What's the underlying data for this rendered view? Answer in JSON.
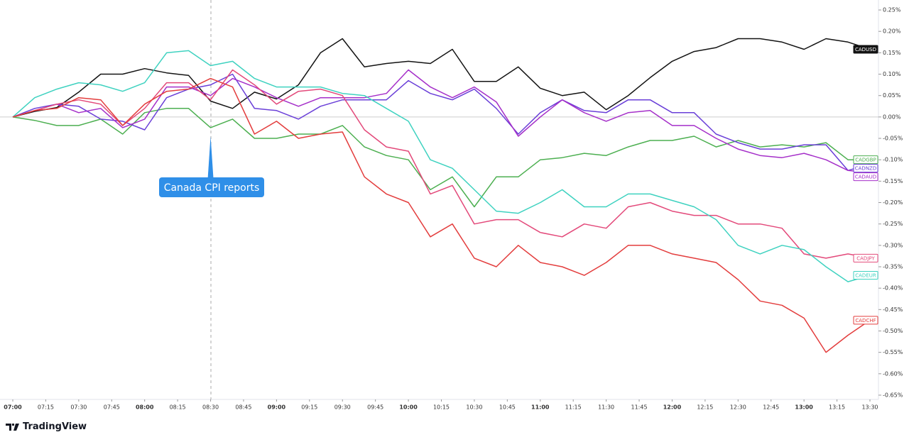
{
  "chart_data": {
    "type": "line",
    "x": [
      "07:00",
      "07:10",
      "07:20",
      "07:30",
      "07:40",
      "07:50",
      "08:00",
      "08:10",
      "08:20",
      "08:30",
      "08:40",
      "08:50",
      "09:00",
      "09:10",
      "09:20",
      "09:30",
      "09:40",
      "09:50",
      "10:00",
      "10:10",
      "10:20",
      "10:30",
      "10:40",
      "10:50",
      "11:00",
      "11:10",
      "11:20",
      "11:30",
      "11:40",
      "11:50",
      "12:00",
      "12:10",
      "12:20",
      "12:30",
      "12:40",
      "12:50",
      "13:00",
      "13:10",
      "13:20",
      "13:30"
    ],
    "series": [
      {
        "name": "CADUSD",
        "color": "#131313",
        "values": [
          0,
          0.013,
          0.022,
          0.058,
          0.1,
          0.1,
          0.113,
          0.103,
          0.097,
          0.037,
          0.02,
          0.058,
          0.042,
          0.075,
          0.15,
          0.183,
          0.117,
          0.125,
          0.13,
          0.125,
          0.158,
          0.083,
          0.083,
          0.117,
          0.067,
          0.05,
          0.058,
          0.017,
          0.05,
          0.092,
          0.13,
          0.153,
          0.162,
          0.183,
          0.183,
          0.175,
          0.158,
          0.183,
          0.175,
          0.158
        ]
      },
      {
        "name": "CADGBP",
        "color": "#4caf50",
        "values": [
          0,
          -0.008,
          -0.02,
          -0.02,
          -0.005,
          -0.04,
          0.01,
          0.02,
          0.02,
          -0.025,
          -0.005,
          -0.05,
          -0.05,
          -0.04,
          -0.04,
          -0.02,
          -0.07,
          -0.09,
          -0.1,
          -0.17,
          -0.14,
          -0.21,
          -0.14,
          -0.14,
          -0.1,
          -0.095,
          -0.085,
          -0.09,
          -0.07,
          -0.055,
          -0.055,
          -0.045,
          -0.07,
          -0.055,
          -0.07,
          -0.065,
          -0.07,
          -0.06,
          -0.1,
          -0.1
        ]
      },
      {
        "name": "CADNZD",
        "color": "#6a3fd8",
        "values": [
          0,
          0.02,
          0.03,
          0.025,
          -0.005,
          -0.01,
          -0.03,
          0.045,
          0.065,
          0.075,
          0.1,
          0.02,
          0.015,
          -0.005,
          0.025,
          0.04,
          0.04,
          0.04,
          0.085,
          0.055,
          0.04,
          0.065,
          0.02,
          -0.04,
          0.01,
          0.04,
          0.015,
          0.01,
          0.04,
          0.04,
          0.01,
          0.01,
          -0.04,
          -0.06,
          -0.075,
          -0.075,
          -0.065,
          -0.065,
          -0.125,
          -0.11
        ]
      },
      {
        "name": "CADAUD",
        "color": "#a52fc9",
        "values": [
          0,
          0.015,
          0.03,
          0.01,
          0.02,
          -0.025,
          -0.005,
          0.07,
          0.07,
          0.05,
          0.09,
          0.07,
          0.045,
          0.025,
          0.045,
          0.045,
          0.045,
          0.055,
          0.11,
          0.07,
          0.045,
          0.07,
          0.035,
          -0.045,
          0,
          0.04,
          0.01,
          -0.01,
          0.01,
          0.015,
          -0.02,
          -0.02,
          -0.05,
          -0.075,
          -0.09,
          -0.095,
          -0.085,
          -0.1,
          -0.125,
          -0.13
        ]
      },
      {
        "name": "CADJPY",
        "color": "#e3497a",
        "values": [
          0,
          0.015,
          0.03,
          0.04,
          0.03,
          -0.02,
          0.02,
          0.08,
          0.08,
          0.04,
          0.11,
          0.075,
          0.03,
          0.06,
          0.065,
          0.05,
          -0.03,
          -0.07,
          -0.08,
          -0.18,
          -0.16,
          -0.25,
          -0.24,
          -0.24,
          -0.27,
          -0.28,
          -0.25,
          -0.26,
          -0.21,
          -0.2,
          -0.22,
          -0.23,
          -0.23,
          -0.25,
          -0.25,
          -0.26,
          -0.32,
          -0.33,
          -0.32,
          -0.33
        ]
      },
      {
        "name": "CADEUR",
        "color": "#3fd2c0",
        "values": [
          0,
          0.045,
          0.065,
          0.08,
          0.075,
          0.06,
          0.08,
          0.15,
          0.155,
          0.12,
          0.13,
          0.09,
          0.07,
          0.07,
          0.07,
          0.055,
          0.05,
          0.02,
          -0.01,
          -0.1,
          -0.12,
          -0.17,
          -0.22,
          -0.225,
          -0.2,
          -0.17,
          -0.21,
          -0.21,
          -0.18,
          -0.18,
          -0.195,
          -0.21,
          -0.24,
          -0.3,
          -0.32,
          -0.3,
          -0.31,
          -0.35,
          -0.385,
          -0.37
        ]
      },
      {
        "name": "CADCHF",
        "color": "#e33d3d",
        "values": [
          0,
          0.015,
          0.02,
          0.045,
          0.04,
          -0.02,
          0.03,
          0.06,
          0.065,
          0.09,
          0.07,
          -0.04,
          -0.01,
          -0.05,
          -0.04,
          -0.035,
          -0.14,
          -0.18,
          -0.2,
          -0.28,
          -0.25,
          -0.33,
          -0.35,
          -0.3,
          -0.34,
          -0.35,
          -0.37,
          -0.34,
          -0.3,
          -0.3,
          -0.32,
          -0.33,
          -0.34,
          -0.38,
          -0.43,
          -0.44,
          -0.47,
          -0.55,
          -0.51,
          -0.475
        ]
      }
    ],
    "ylim": [
      -0.66,
      0.265
    ],
    "yticks": [
      {
        "value": 0.25,
        "label": "0.25%"
      },
      {
        "value": 0.2,
        "label": "0.20%"
      },
      {
        "value": 0.15,
        "label": "0.15%"
      },
      {
        "value": 0.1,
        "label": "0.10%"
      },
      {
        "value": 0.05,
        "label": "0.05%"
      },
      {
        "value": 0,
        "label": "0.00%"
      },
      {
        "value": -0.05,
        "label": "-0.05%"
      },
      {
        "value": -0.1,
        "label": "-0.10%"
      },
      {
        "value": -0.15,
        "label": "-0.15%"
      },
      {
        "value": -0.2,
        "label": "-0.20%"
      },
      {
        "value": -0.25,
        "label": "-0.25%"
      },
      {
        "value": -0.3,
        "label": "-0.30%"
      },
      {
        "value": -0.35,
        "label": "-0.35%"
      },
      {
        "value": -0.4,
        "label": "-0.40%"
      },
      {
        "value": -0.45,
        "label": "-0.45%"
      },
      {
        "value": -0.5,
        "label": "-0.50%"
      },
      {
        "value": -0.55,
        "label": "-0.55%"
      },
      {
        "value": -0.6,
        "label": "-0.60%"
      },
      {
        "value": -0.65,
        "label": "-0.65%"
      }
    ],
    "xticks": [
      "07:00",
      "07:15",
      "07:30",
      "07:45",
      "08:00",
      "08:15",
      "08:30",
      "08:45",
      "09:00",
      "09:15",
      "09:30",
      "09:45",
      "10:00",
      "10:15",
      "10:30",
      "10:45",
      "11:00",
      "11:15",
      "11:30",
      "11:45",
      "12:00",
      "12:15",
      "12:30",
      "12:45",
      "13:00",
      "13:15",
      "13:30"
    ],
    "annotation": "Canada CPI reports",
    "branding": "TradingView"
  }
}
